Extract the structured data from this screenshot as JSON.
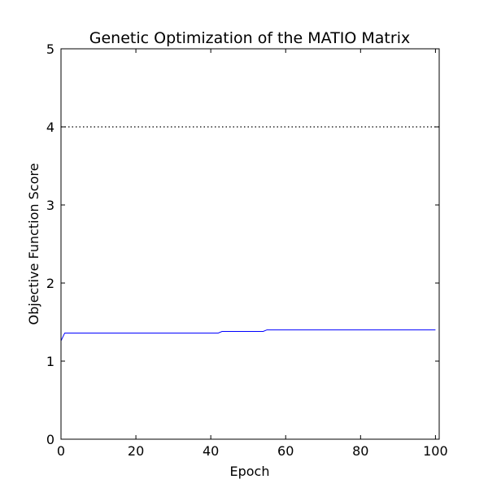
{
  "chart_data": {
    "type": "line",
    "title": "Genetic Optimization of the MATIO Matrix",
    "xlabel": "Epoch",
    "ylabel": "Objective Function Score",
    "xlim": [
      0,
      101
    ],
    "ylim": [
      0,
      5
    ],
    "xticks": [
      0,
      20,
      40,
      60,
      80,
      100
    ],
    "yticks": [
      0,
      1,
      2,
      3,
      4,
      5
    ],
    "grid": false,
    "reference_lines": [
      {
        "orientation": "horizontal",
        "y": 4,
        "style": "dotted",
        "color": "#000000"
      }
    ],
    "series": [
      {
        "color": "#0000ff",
        "x": [
          0,
          1,
          42,
          43,
          54,
          55,
          100
        ],
        "y": [
          1.26,
          1.36,
          1.36,
          1.38,
          1.38,
          1.4,
          1.4
        ]
      }
    ]
  }
}
